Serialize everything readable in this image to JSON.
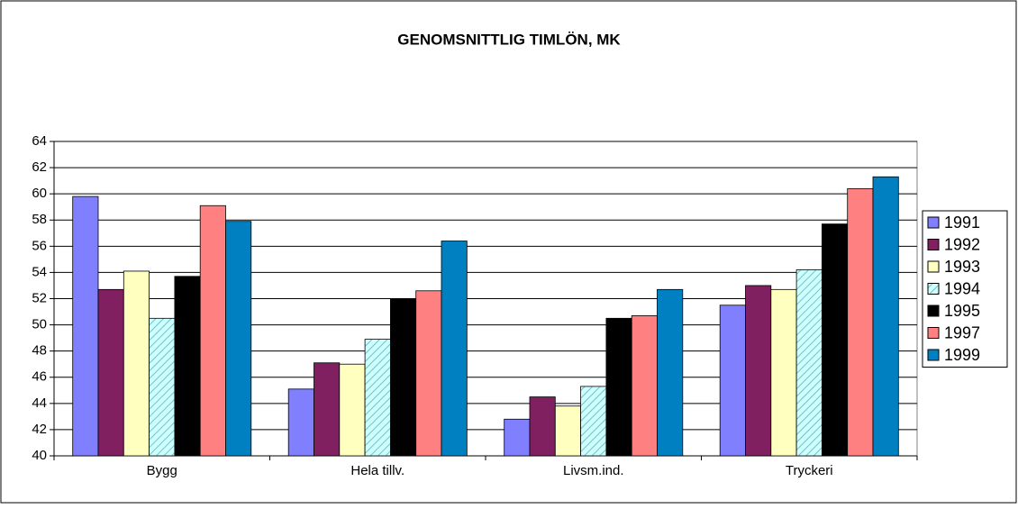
{
  "chart_data": {
    "type": "bar",
    "title": "GENOMSNITTLIG TIMLÖN, MK",
    "categories": [
      "Bygg",
      "Hela tillv.",
      "Livsm.ind.",
      "Tryckeri"
    ],
    "series": [
      {
        "name": "1991",
        "color": "#8080ff",
        "values": [
          59.8,
          45.1,
          42.8,
          51.5
        ]
      },
      {
        "name": "1992",
        "color": "#802060",
        "values": [
          52.7,
          47.1,
          44.5,
          53.0
        ]
      },
      {
        "name": "1993",
        "color": "#ffffc0",
        "values": [
          54.1,
          47.0,
          43.8,
          52.7
        ]
      },
      {
        "name": "1994",
        "color": "#ccffff",
        "pattern": "diagonal",
        "values": [
          50.5,
          48.9,
          45.3,
          54.2
        ]
      },
      {
        "name": "1995",
        "color": "#000000",
        "values": [
          53.7,
          52.0,
          50.5,
          57.7
        ]
      },
      {
        "name": "1997",
        "color": "#ff8080",
        "values": [
          59.1,
          52.6,
          50.7,
          60.4
        ]
      },
      {
        "name": "1999",
        "color": "#0080c0",
        "values": [
          57.9,
          56.4,
          52.7,
          61.3
        ]
      }
    ],
    "ylim": [
      40,
      64
    ],
    "yticks": [
      40,
      42,
      44,
      46,
      48,
      50,
      52,
      54,
      56,
      58,
      60,
      62,
      64
    ],
    "grid": true,
    "legend": "right"
  }
}
